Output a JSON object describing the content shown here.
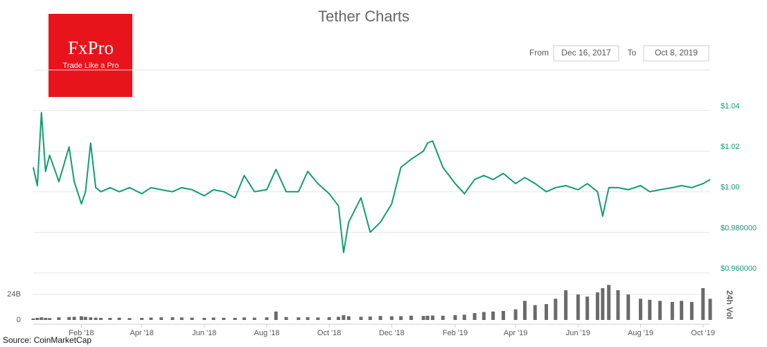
{
  "logo": {
    "brand": "FxPro",
    "tagline": "Trade Like a Pro"
  },
  "range": {
    "from_label": "From",
    "from": "Dec 16, 2017",
    "to_label": "To",
    "to": "Oct 8, 2019"
  },
  "source": "Source: CoinMarketCap",
  "chart_data": {
    "type": "line",
    "title": "Tether Charts",
    "xlim": [
      "2017-12-16",
      "2019-10-08"
    ],
    "xticks": [
      {
        "value": "2018-02-01",
        "label": "Feb '18"
      },
      {
        "value": "2018-04-01",
        "label": "Apr '18"
      },
      {
        "value": "2018-06-01",
        "label": "Jun '18"
      },
      {
        "value": "2018-08-01",
        "label": "Aug '18"
      },
      {
        "value": "2018-10-01",
        "label": "Oct '18"
      },
      {
        "value": "2018-12-01",
        "label": "Dec '18"
      },
      {
        "value": "2019-02-01",
        "label": "Feb '19"
      },
      {
        "value": "2019-04-01",
        "label": "Apr '19"
      },
      {
        "value": "2019-06-01",
        "label": "Jun '19"
      },
      {
        "value": "2019-08-01",
        "label": "Aug '19"
      },
      {
        "value": "2019-10-01",
        "label": "Oct '19"
      }
    ],
    "ylim": [
      0.96,
      1.06
    ],
    "yticks": [
      {
        "value": 1.04,
        "label": "$1.04"
      },
      {
        "value": 1.02,
        "label": "$1.02"
      },
      {
        "value": 1.0,
        "label": "$1.00"
      },
      {
        "value": 0.98,
        "label": "$0.980000"
      },
      {
        "value": 0.96,
        "label": "$0.960000"
      }
    ],
    "grid": true,
    "x": [
      "2017-12-16",
      "2017-12-20",
      "2017-12-24",
      "2017-12-28",
      "2018-01-01",
      "2018-01-10",
      "2018-01-20",
      "2018-01-25",
      "2018-02-01",
      "2018-02-05",
      "2018-02-10",
      "2018-02-15",
      "2018-02-20",
      "2018-03-01",
      "2018-03-10",
      "2018-03-20",
      "2018-04-01",
      "2018-04-10",
      "2018-04-20",
      "2018-05-01",
      "2018-05-10",
      "2018-05-20",
      "2018-06-01",
      "2018-06-10",
      "2018-06-20",
      "2018-07-01",
      "2018-07-10",
      "2018-07-20",
      "2018-08-01",
      "2018-08-10",
      "2018-08-20",
      "2018-09-01",
      "2018-09-10",
      "2018-09-20",
      "2018-10-01",
      "2018-10-10",
      "2018-10-15",
      "2018-10-20",
      "2018-11-01",
      "2018-11-10",
      "2018-11-20",
      "2018-12-01",
      "2018-12-10",
      "2018-12-20",
      "2019-01-01",
      "2019-01-05",
      "2019-01-10",
      "2019-01-20",
      "2019-02-01",
      "2019-02-10",
      "2019-02-20",
      "2019-03-01",
      "2019-03-10",
      "2019-03-20",
      "2019-04-01",
      "2019-04-10",
      "2019-04-20",
      "2019-05-01",
      "2019-05-10",
      "2019-05-20",
      "2019-06-01",
      "2019-06-10",
      "2019-06-20",
      "2019-06-25",
      "2019-07-01",
      "2019-07-10",
      "2019-07-20",
      "2019-08-01",
      "2019-08-10",
      "2019-08-20",
      "2019-09-01",
      "2019-09-10",
      "2019-09-20",
      "2019-10-01",
      "2019-10-08"
    ],
    "series": [
      {
        "color": "#119c73",
        "values": [
          1.012,
          1.003,
          1.039,
          1.01,
          1.018,
          1.005,
          1.022,
          1.005,
          0.994,
          1.0,
          1.024,
          1.002,
          1.0,
          1.002,
          1.0,
          1.002,
          0.999,
          1.002,
          1.001,
          1.0,
          1.002,
          1.001,
          0.998,
          1.001,
          1.0,
          0.997,
          1.008,
          1.0,
          1.001,
          1.011,
          1.0,
          1.0,
          1.01,
          1.004,
          0.999,
          0.993,
          0.97,
          0.985,
          0.997,
          0.98,
          0.985,
          0.994,
          1.012,
          1.016,
          1.02,
          1.024,
          1.025,
          1.012,
          1.004,
          0.999,
          1.006,
          1.008,
          1.006,
          1.009,
          1.004,
          1.007,
          1.004,
          1.0,
          1.002,
          1.003,
          1.001,
          1.004,
          1.0,
          0.988,
          1.002,
          1.002,
          1.001,
          1.003,
          1.0,
          1.001,
          1.002,
          1.003,
          1.002,
          1.004,
          1.006
        ]
      }
    ],
    "volume": {
      "label": "24h Vol",
      "color": "#6b6b6b",
      "ylim": [
        0,
        43
      ],
      "yticks": [
        0,
        {
          "value": 24,
          "label": "24B"
        }
      ],
      "values": [
        1.5,
        2.0,
        2.5,
        2.0,
        1.8,
        2.5,
        2.8,
        3.0,
        3.5,
        3.0,
        2.5,
        2.2,
        2.0,
        2.0,
        2.2,
        1.8,
        2.0,
        2.3,
        2.5,
        2.6,
        2.4,
        2.2,
        2.0,
        2.3,
        2.1,
        2.0,
        2.4,
        2.2,
        2.5,
        8.0,
        2.8,
        2.5,
        2.6,
        2.4,
        2.6,
        3.0,
        4.5,
        3.5,
        3.0,
        3.2,
        3.8,
        3.5,
        3.6,
        4.0,
        3.8,
        4.0,
        4.2,
        4.0,
        4.5,
        5.0,
        6.5,
        7.5,
        8.0,
        8.5,
        10.0,
        18.0,
        14.0,
        15.0,
        20.0,
        28.0,
        24.0,
        22.0,
        26.0,
        30.0,
        33.0,
        28.0,
        24.0,
        20.0,
        19.0,
        18.0,
        17.0,
        18.0,
        17.0,
        30.0,
        20.0
      ]
    }
  }
}
